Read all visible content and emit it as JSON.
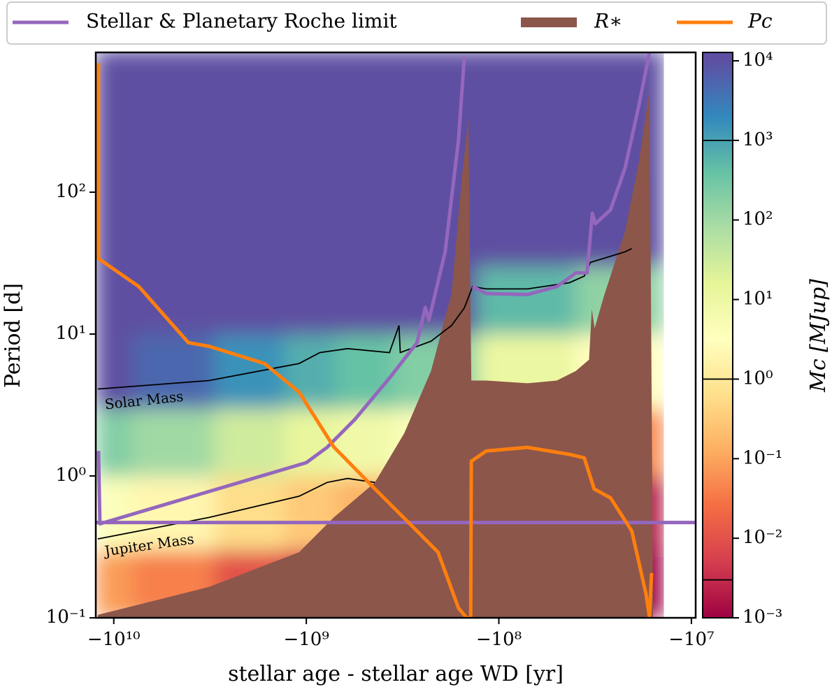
{
  "chart_data": {
    "type": "line",
    "xlabel": "stellar age - stellar age WD [yr]",
    "ylabel": "Period [d]",
    "xscale": "neglog",
    "yscale": "log",
    "xlim": [
      -12400000000,
      -9500000
    ],
    "ylim": [
      0.1,
      966
    ],
    "xticks": [
      {
        "value": -10000000000,
        "label": "−10¹⁰"
      },
      {
        "value": -1000000000,
        "label": "−10⁹"
      },
      {
        "value": -100000000,
        "label": "−10⁸"
      },
      {
        "value": -10000000,
        "label": "−10⁷"
      }
    ],
    "yticks": [
      {
        "value": 0.1,
        "label": "10⁻¹"
      },
      {
        "value": 1,
        "label": "10⁰"
      },
      {
        "value": 10,
        "label": "10¹"
      },
      {
        "value": 100,
        "label": "10²"
      }
    ],
    "legend": "top",
    "series": [
      {
        "name": "Stellar & Planetary Roche limit",
        "color": "#9467bd",
        "kind": "line",
        "x": [
          -12000000000,
          -11800000000,
          -1000000000,
          -780000000,
          -560000000,
          -370000000,
          -266000000,
          -241000000,
          -231000000,
          -190000000,
          -162000000,
          -151000000,
          null,
          -137000000,
          -116000000,
          -71000000,
          -50000000,
          -39800000,
          -34800000,
          -32700000,
          -31500000,
          -26300000,
          -22100000,
          -18700000,
          -16500000,
          null,
          -12400000000,
          -9500000
        ],
        "values": [
          1.5,
          0.46,
          1.24,
          1.59,
          2.5,
          4.9,
          8.7,
          15.4,
          12.5,
          38,
          234,
          910,
          null,
          21.6,
          19.3,
          19.0,
          21.6,
          27,
          27,
          71,
          60,
          75,
          148,
          413,
          966,
          null,
          0.47,
          0.47
        ]
      },
      {
        "name": "R∗",
        "color": "#8c564b",
        "kind": "area",
        "x": [
          -12100000000,
          -3200000000,
          -1090000000,
          -720000000,
          -440000000,
          -310000000,
          -225000000,
          -176000000,
          -155000000,
          -144000000,
          -139000000,
          -116000000,
          -71000000,
          -50000000,
          -39800000,
          -34000000,
          -32900000,
          -31800000,
          -28300000,
          -22100000,
          -18700000,
          -16500000,
          -15800000
        ],
        "values": [
          0.105,
          0.165,
          0.29,
          0.51,
          0.9,
          2.0,
          5.5,
          19.3,
          133,
          330,
          4.7,
          4.7,
          4.5,
          4.7,
          5.5,
          6.6,
          15,
          11,
          19,
          53,
          166,
          518,
          0.1
        ]
      },
      {
        "name": "Pc",
        "color": "#ff7f0e",
        "kind": "line",
        "x": [
          -12000000000,
          -12000000000,
          -7400000000,
          -4100000000,
          -3200000000,
          -1650000000,
          -1090000000,
          -720000000,
          -440000000,
          -290000000,
          -207000000,
          -162000000,
          -147000000,
          -140000000,
          -139000000,
          -116000000,
          -71000000,
          -43000000,
          -36000000,
          -32000000,
          -26300000,
          -20400000,
          -17200000,
          -16500000,
          -16100000
        ],
        "values": [
          810,
          34,
          21.6,
          8.7,
          8.2,
          6.2,
          3.9,
          1.6,
          0.81,
          0.46,
          0.29,
          0.117,
          0.1,
          0.1,
          1.27,
          1.5,
          1.59,
          1.42,
          1.34,
          0.81,
          0.7,
          0.41,
          0.147,
          0.1,
          0.207
        ]
      }
    ],
    "contours": [
      {
        "label": "Solar Mass",
        "x": [
          -12100000000,
          -3200000000,
          -1090000000,
          -850000000,
          -610000000,
          -370000000,
          -330000000,
          -325000000,
          -225000000,
          -176000000,
          -151000000,
          -137000000,
          -116000000,
          -71000000,
          -43000000,
          -36000000,
          -33400000,
          -22100000,
          -20400000
        ],
        "values": [
          4.1,
          4.7,
          6.2,
          7.4,
          7.9,
          7.4,
          11.5,
          7.4,
          8.9,
          11.5,
          15.3,
          21.6,
          20.8,
          20.8,
          23,
          25.6,
          32,
          38,
          40
        ]
      },
      {
        "label": "Jupiter Mass",
        "x": [
          -12100000000,
          -3200000000,
          -1090000000,
          -780000000,
          -610000000,
          -440000000
        ],
        "values": [
          0.36,
          0.51,
          0.72,
          0.9,
          0.96,
          0.9
        ]
      }
    ],
    "heatmap": {
      "x_edges": [
        -12400000000,
        -8000000000,
        -3000000000,
        -1300000000,
        -700000000,
        -350000000,
        -130000000,
        -40000000,
        -14000000
      ],
      "y_edges": [
        0.1,
        0.3,
        1,
        3,
        10,
        30,
        100,
        300,
        1000
      ],
      "values": [
        [
          0.08,
          4,
          200,
          10000,
          10000,
          10000,
          10000,
          10000
        ],
        [
          0.04,
          2,
          100,
          5000,
          10000,
          10000,
          10000,
          10000
        ],
        [
          0.01,
          0.6,
          30,
          1500,
          10000,
          10000,
          10000,
          10000
        ],
        [
          0.005,
          0.3,
          13,
          700,
          10000,
          10000,
          10000,
          10000
        ],
        [
          0.003,
          0.16,
          8,
          400,
          10000,
          10000,
          10000,
          10000
        ],
        [
          0.002,
          0.08,
          4,
          200,
          10000,
          10000,
          10000,
          10000
        ],
        [
          0.001,
          0.006,
          0.2,
          11,
          500,
          10000,
          10000,
          10000
        ],
        [
          0.001,
          0.002,
          0.05,
          3,
          150,
          10000,
          10000,
          10000
        ]
      ]
    },
    "colorbar": {
      "label": "Mc [MJup]",
      "clim": [
        0.001,
        10000
      ],
      "colormap": [
        "#9e0142",
        "#d53e4f",
        "#f46d43",
        "#fdae61",
        "#fee08b",
        "#ffffbf",
        "#e6f598",
        "#abdda4",
        "#66c2a5",
        "#3288bd",
        "#5e4fa2"
      ],
      "ticks": [
        {
          "value": 0.001,
          "label": "10⁻³"
        },
        {
          "value": 0.01,
          "label": "10⁻²"
        },
        {
          "value": 0.1,
          "label": "10⁻¹"
        },
        {
          "value": 1,
          "label": "10⁰"
        },
        {
          "value": 10,
          "label": "10¹"
        },
        {
          "value": 100,
          "label": "10²"
        },
        {
          "value": 1000,
          "label": "10³"
        },
        {
          "value": 10000,
          "label": "10⁴"
        }
      ],
      "contour_levels": [
        0.003,
        1,
        1000
      ]
    }
  }
}
